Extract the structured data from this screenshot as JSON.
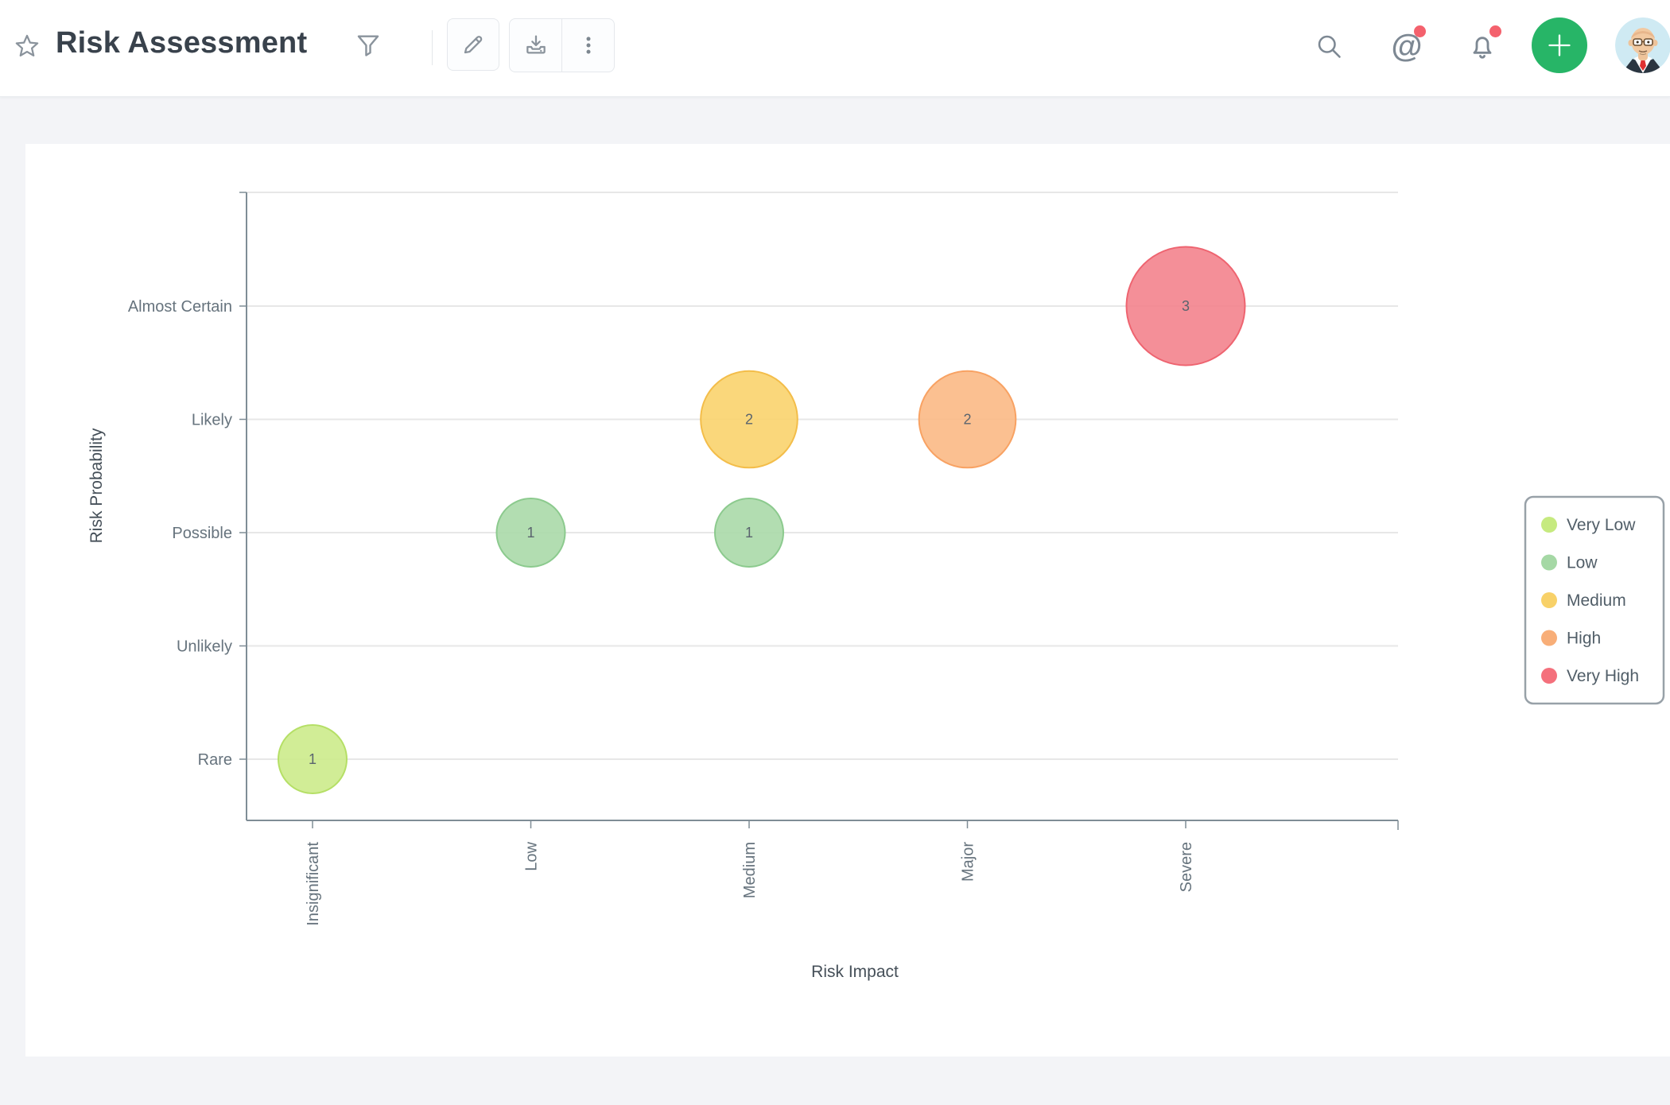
{
  "header": {
    "title": "Risk Assessment",
    "icons": [
      "star-icon",
      "filter-icon",
      "edit-icon",
      "download-icon",
      "kebab-menu-icon",
      "search-icon",
      "mention-icon",
      "notification-bell-icon",
      "plus-icon",
      "user-avatar"
    ],
    "notification_badges": {
      "mention": true,
      "bell": true
    },
    "colors": {
      "accent_green": "#27b567",
      "badge_red": "#f4616d",
      "title_text": "#39424c",
      "icon_gray": "#7d8893"
    }
  },
  "chart_data": {
    "type": "bubble",
    "title": "",
    "xlabel": "Risk Impact",
    "ylabel": "Risk Probability",
    "x_categories": [
      "Insignificant",
      "Low",
      "Medium",
      "Major",
      "Severe"
    ],
    "y_categories": [
      "Rare",
      "Unlikely",
      "Possible",
      "Likely",
      "Almost Certain"
    ],
    "grid": true,
    "legend_position": "right",
    "series": [
      {
        "name": "Very Low",
        "color": "#cdec8d",
        "border": "#b5df66",
        "legend_dot": "#c6ea7f",
        "points": [
          {
            "x": "Insignificant",
            "y": "Rare",
            "value": 1
          }
        ]
      },
      {
        "name": "Low",
        "color": "#abdaaa",
        "border": "#8cca8e",
        "legend_dot": "#a5d8a5",
        "points": [
          {
            "x": "Low",
            "y": "Possible",
            "value": 1
          },
          {
            "x": "Medium",
            "y": "Possible",
            "value": 1
          }
        ]
      },
      {
        "name": "Medium",
        "color": "#fad470",
        "border": "#f3bd4a",
        "legend_dot": "#f8d168",
        "points": [
          {
            "x": "Medium",
            "y": "Likely",
            "value": 2
          }
        ]
      },
      {
        "name": "High",
        "color": "#fbbb88",
        "border": "#f8a263",
        "legend_dot": "#f8ae78",
        "points": [
          {
            "x": "Major",
            "y": "Likely",
            "value": 2
          }
        ]
      },
      {
        "name": "Very High",
        "color": "#f3858f",
        "border": "#ee6470",
        "legend_dot": "#f4707c",
        "points": [
          {
            "x": "Severe",
            "y": "Almost Certain",
            "value": 3
          }
        ]
      }
    ]
  }
}
